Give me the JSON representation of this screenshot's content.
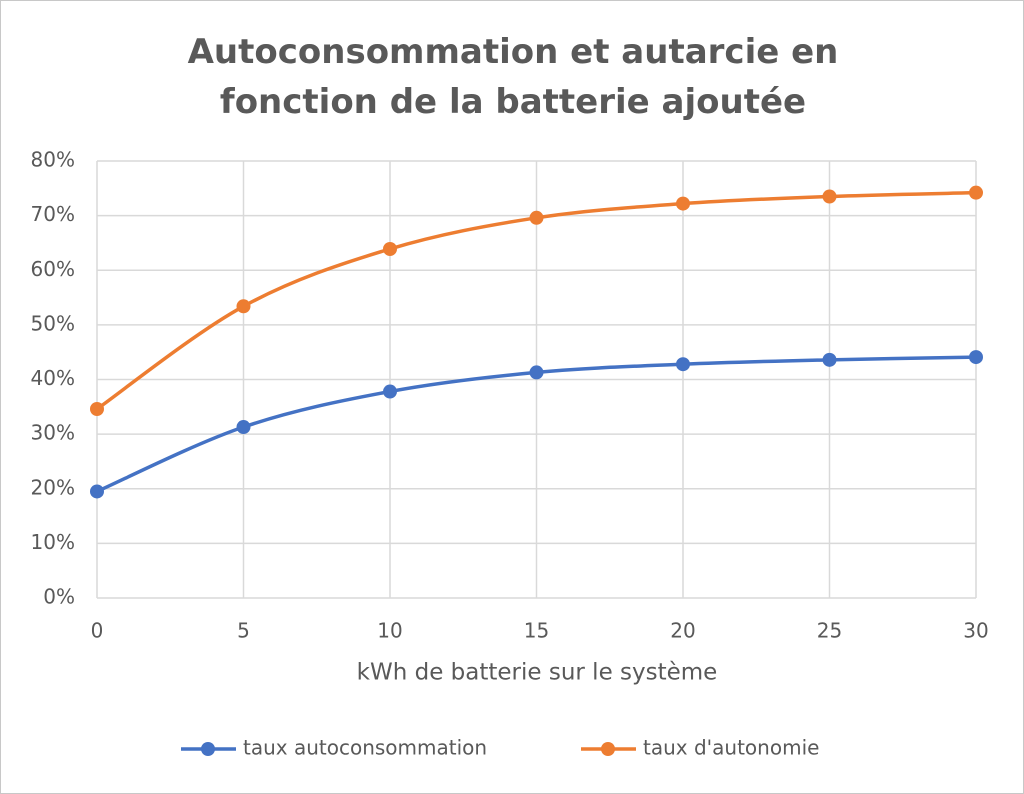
{
  "chart_data": {
    "type": "line",
    "title": "Autoconsommation et autarcie en fonction de la batterie ajoutée",
    "x_label": "kWh de batterie sur le système",
    "x": [
      0,
      5,
      10,
      15,
      20,
      25,
      30
    ],
    "series": [
      {
        "name": "taux autoconsommation",
        "color": "#4472c4",
        "values": [
          19.5,
          31.3,
          37.8,
          41.3,
          42.8,
          43.6,
          44.1
        ]
      },
      {
        "name": "taux d'autonomie",
        "color": "#ed7d31",
        "values": [
          34.6,
          53.4,
          63.9,
          69.6,
          72.2,
          73.5,
          74.2
        ]
      }
    ],
    "xlim": [
      0,
      30
    ],
    "xticks": [
      0,
      5,
      10,
      15,
      20,
      25,
      30
    ],
    "ylim": [
      0,
      80
    ],
    "yticks": [
      {
        "value": 0,
        "label": "0%"
      },
      {
        "value": 10,
        "label": "10%"
      },
      {
        "value": 20,
        "label": "20%"
      },
      {
        "value": 30,
        "label": "30%"
      },
      {
        "value": 40,
        "label": "40%"
      },
      {
        "value": 50,
        "label": "50%"
      },
      {
        "value": 60,
        "label": "60%"
      },
      {
        "value": 70,
        "label": "70%"
      },
      {
        "value": 80,
        "label": "80%"
      }
    ],
    "grid": true,
    "smooth": true,
    "legend": "bottom"
  }
}
